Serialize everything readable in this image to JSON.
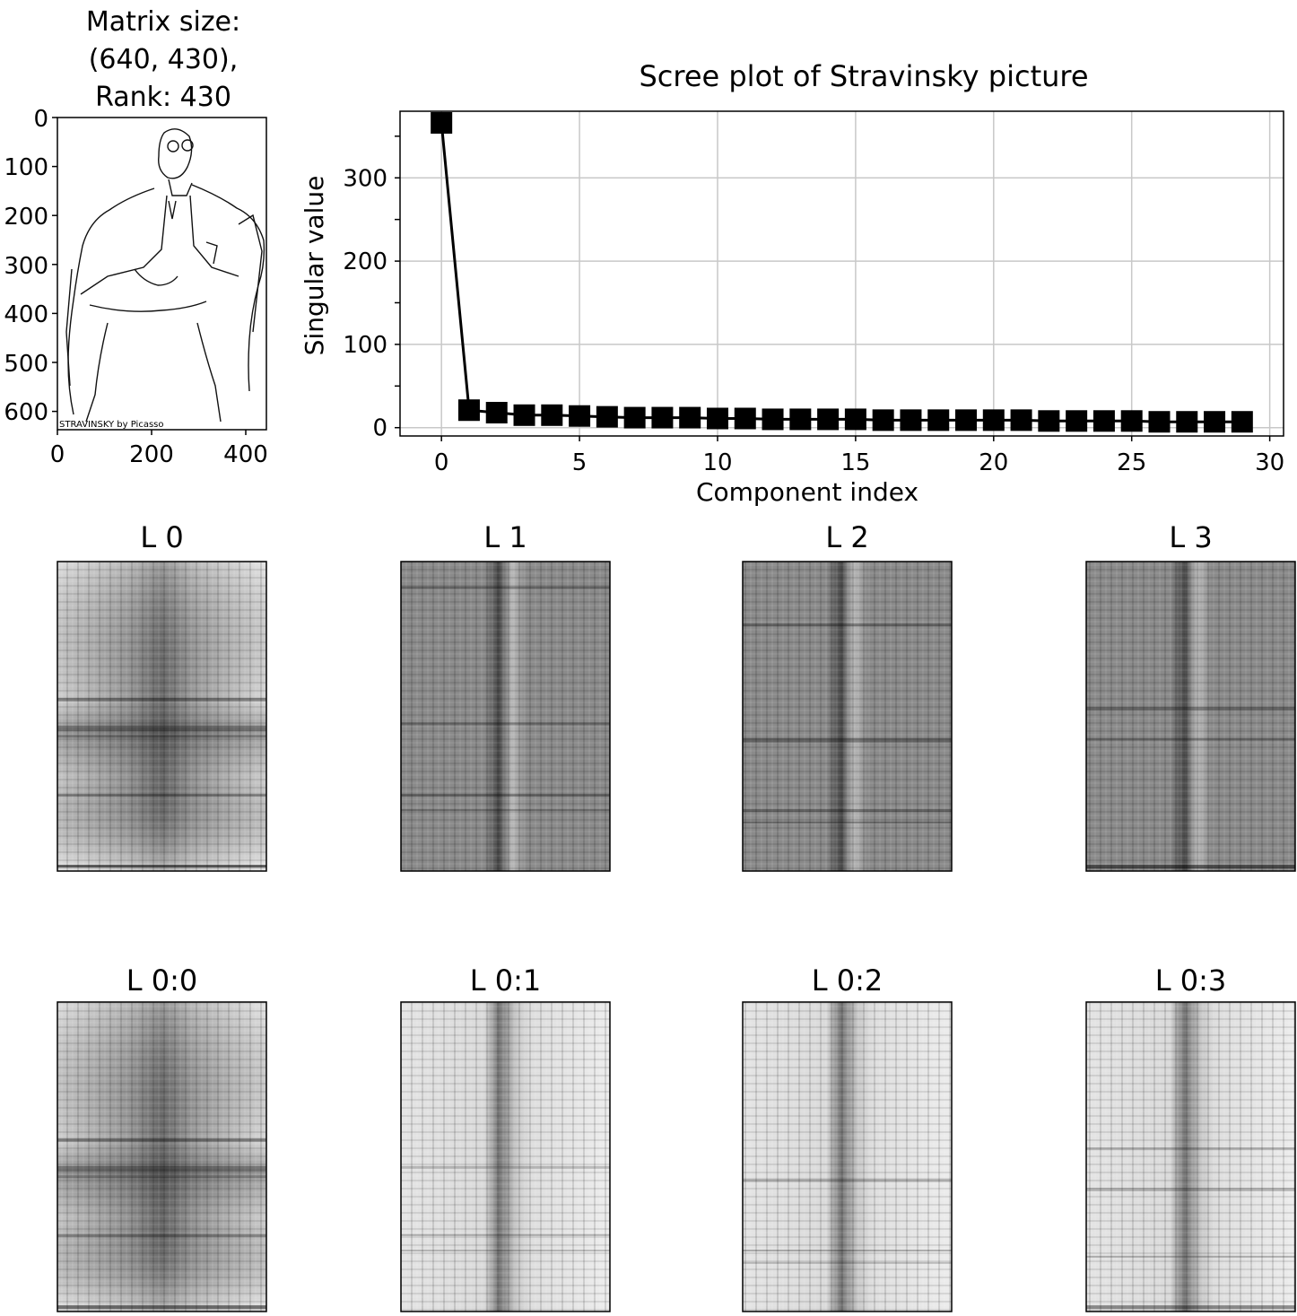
{
  "matrix_panel": {
    "title_lines": [
      "Matrix size:",
      "(640, 430),",
      "Rank: 430"
    ],
    "image_caption": "STRAVINSKY  by Picasso",
    "y_ticks": [
      "0",
      "100",
      "200",
      "300",
      "400",
      "500",
      "600"
    ],
    "x_ticks": [
      "0",
      "200",
      "400"
    ]
  },
  "layer_titles": [
    "L 0",
    "L 1",
    "L 2",
    "L 3"
  ],
  "cumulative_titles": [
    "L 0:0",
    "L 0:1",
    "L 0:2",
    "L 0:3"
  ],
  "chart_data": {
    "type": "line",
    "title": "Scree plot of Stravinsky picture",
    "xlabel": "Component index",
    "ylabel": "Singular value",
    "marker": "square",
    "line_color": "#000000",
    "grid": true,
    "xlim": [
      -1.5,
      30.5
    ],
    "ylim": [
      -10,
      380
    ],
    "x_ticks": [
      0,
      5,
      10,
      15,
      20,
      25,
      30
    ],
    "y_ticks": [
      0,
      100,
      200,
      300
    ],
    "x": [
      0,
      1,
      2,
      3,
      4,
      5,
      6,
      7,
      8,
      9,
      10,
      11,
      12,
      13,
      14,
      15,
      16,
      17,
      18,
      19,
      20,
      21,
      22,
      23,
      24,
      25,
      26,
      27,
      28,
      29
    ],
    "values": [
      366,
      21,
      18,
      15,
      15,
      14,
      13,
      12,
      12,
      12,
      11,
      11,
      10,
      10,
      10,
      10,
      9,
      9,
      9,
      9,
      9,
      9,
      8,
      8,
      8,
      8,
      7,
      7,
      7,
      7
    ]
  }
}
